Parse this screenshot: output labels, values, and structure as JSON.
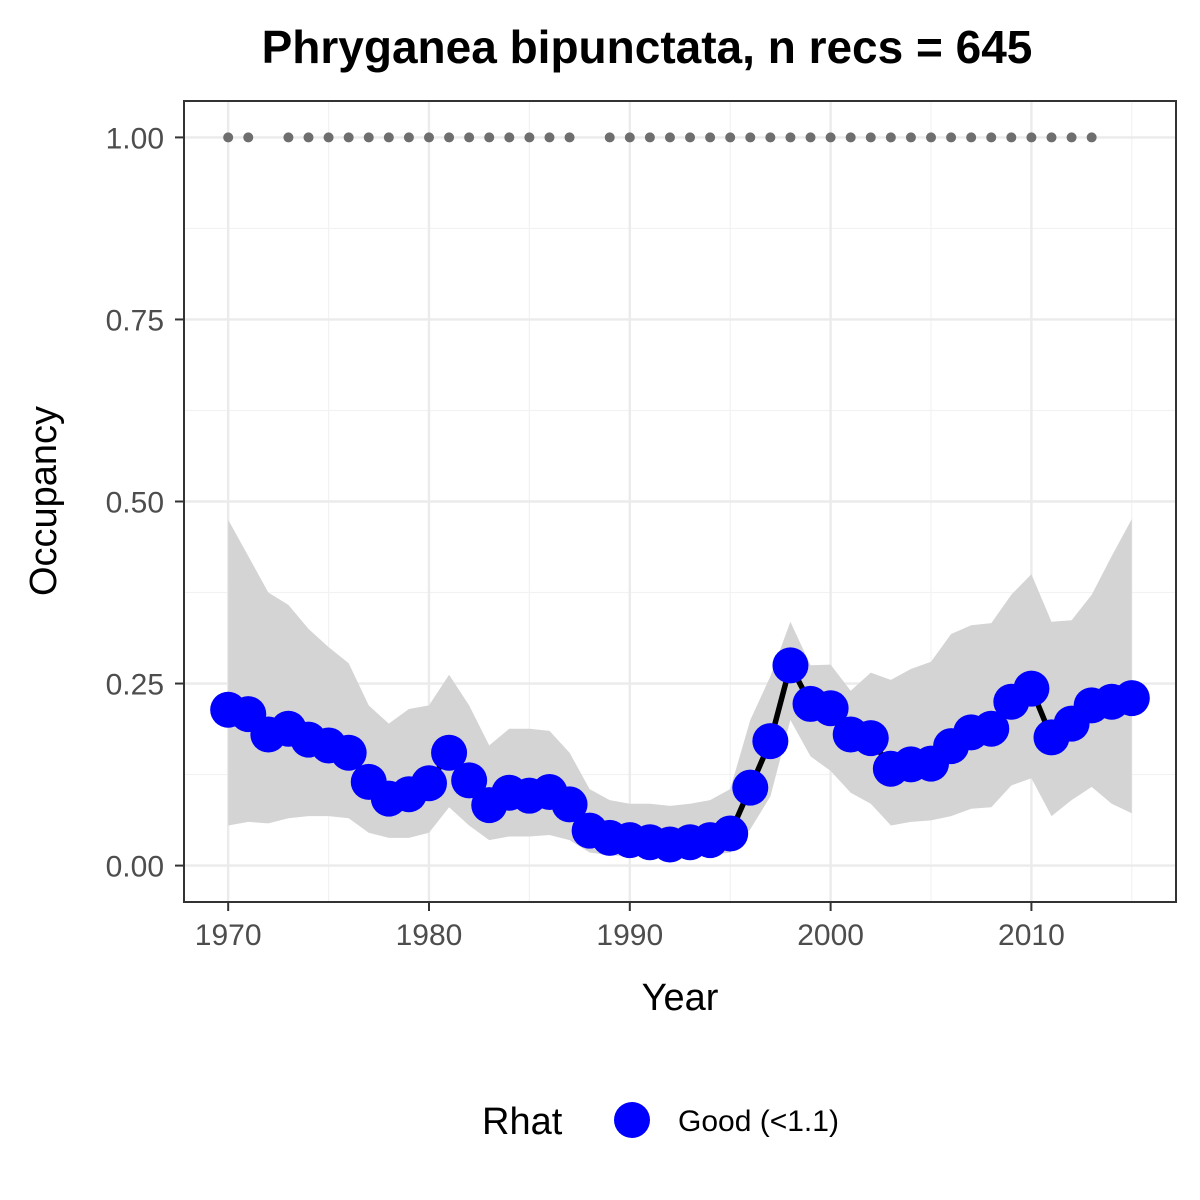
{
  "chart_data": {
    "type": "line",
    "title": "Phryganea bipunctata, n recs = 645",
    "xlabel": "Year",
    "ylabel": "Occupancy",
    "xlim": [
      1967.8,
      2017.2
    ],
    "ylim": [
      -0.05,
      1.05
    ],
    "x_ticks": [
      1970,
      1980,
      1990,
      2000,
      2010
    ],
    "x_tick_labels": [
      "1970",
      "1980",
      "1990",
      "2000",
      "2010"
    ],
    "y_ticks": [
      0,
      0.25,
      0.5,
      0.75,
      1.0
    ],
    "y_tick_labels": [
      "0.00",
      "0.25",
      "0.50",
      "0.75",
      "1.00"
    ],
    "grid": true,
    "legend": {
      "title": "Rhat",
      "placement": "bottom",
      "entries": [
        {
          "label": "Good (<1.1)",
          "color": "#0000ff"
        }
      ]
    },
    "colors": {
      "points": "#0000ff",
      "line": "#000000",
      "ribbon": "#d4d4d4",
      "record_dots": "#6e6e6e"
    },
    "x": [
      1970,
      1971,
      1972,
      1973,
      1974,
      1975,
      1976,
      1977,
      1978,
      1979,
      1980,
      1981,
      1982,
      1983,
      1984,
      1985,
      1986,
      1987,
      1988,
      1989,
      1990,
      1991,
      1992,
      1993,
      1994,
      1995,
      1996,
      1997,
      1998,
      1999,
      2000,
      2001,
      2002,
      2003,
      2004,
      2005,
      2006,
      2007,
      2008,
      2009,
      2010,
      2011,
      2012,
      2013,
      2014,
      2015
    ],
    "series": [
      {
        "values": [
          0.214,
          0.208,
          0.18,
          0.188,
          0.173,
          0.165,
          0.155,
          0.115,
          0.092,
          0.098,
          0.113,
          0.155,
          0.117,
          0.083,
          0.1,
          0.096,
          0.101,
          0.084,
          0.048,
          0.038,
          0.035,
          0.032,
          0.029,
          0.032,
          0.035,
          0.044,
          0.107,
          0.171,
          0.275,
          0.222,
          0.216,
          0.18,
          0.175,
          0.133,
          0.139,
          0.14,
          0.164,
          0.183,
          0.188,
          0.225,
          0.243,
          0.176,
          0.195,
          0.22,
          0.225,
          0.23
        ],
        "lower": [
          0.055,
          0.06,
          0.058,
          0.065,
          0.068,
          0.068,
          0.065,
          0.045,
          0.038,
          0.038,
          0.045,
          0.08,
          0.055,
          0.035,
          0.04,
          0.04,
          0.042,
          0.035,
          0.018,
          0.014,
          0.013,
          0.012,
          0.011,
          0.012,
          0.014,
          0.018,
          0.05,
          0.095,
          0.2,
          0.15,
          0.13,
          0.1,
          0.085,
          0.055,
          0.06,
          0.062,
          0.068,
          0.078,
          0.08,
          0.11,
          0.12,
          0.068,
          0.09,
          0.108,
          0.085,
          0.072
        ],
        "upper": [
          0.475,
          0.425,
          0.375,
          0.358,
          0.325,
          0.3,
          0.278,
          0.22,
          0.195,
          0.215,
          0.22,
          0.262,
          0.22,
          0.165,
          0.188,
          0.188,
          0.185,
          0.155,
          0.105,
          0.09,
          0.085,
          0.085,
          0.082,
          0.085,
          0.09,
          0.105,
          0.2,
          0.26,
          0.335,
          0.275,
          0.276,
          0.24,
          0.265,
          0.255,
          0.27,
          0.28,
          0.318,
          0.33,
          0.333,
          0.372,
          0.4,
          0.335,
          0.337,
          0.372,
          0.425,
          0.476
        ]
      }
    ],
    "record_years": [
      1970,
      1971,
      1973,
      1974,
      1975,
      1976,
      1977,
      1978,
      1979,
      1980,
      1981,
      1982,
      1983,
      1984,
      1985,
      1986,
      1987,
      1989,
      1990,
      1991,
      1992,
      1993,
      1994,
      1995,
      1996,
      1997,
      1998,
      1999,
      2000,
      2001,
      2002,
      2003,
      2004,
      2005,
      2006,
      2007,
      2008,
      2009,
      2010,
      2011,
      2012,
      2013
    ],
    "record_value": 1.0
  }
}
